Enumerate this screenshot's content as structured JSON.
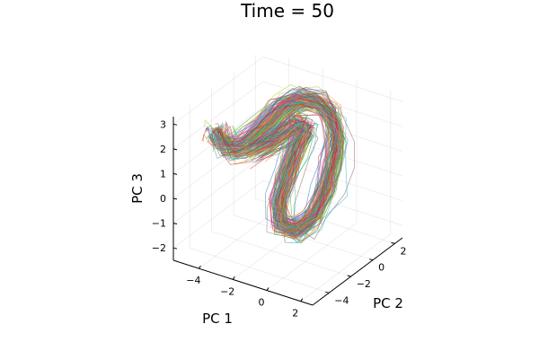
{
  "chart_data": {
    "type": "line",
    "projection": "3d",
    "title": "Time = 50",
    "xlabel": "PC 1",
    "ylabel": "PC 2",
    "zlabel": "PC 3",
    "xlim": [
      -5.5,
      2.7
    ],
    "ylim": [
      -5.5,
      2.7
    ],
    "zlim": [
      -2.5,
      3.3
    ],
    "x_ticks": [
      -4,
      -2,
      0,
      2
    ],
    "x_tick_labels": [
      "−4",
      "−2",
      "0",
      "2"
    ],
    "y_ticks": [
      -4,
      -2,
      0,
      2
    ],
    "y_tick_labels": [
      "−4",
      "−2",
      "0",
      "2"
    ],
    "z_ticks": [
      -2,
      -1,
      0,
      1,
      2,
      3
    ],
    "z_tick_labels": [
      "−2",
      "−1",
      "0",
      "1",
      "2",
      "3"
    ],
    "grid": true,
    "legend": false,
    "series_count": 120,
    "palette": [
      "#1f77b4",
      "#d62728",
      "#2ca02c",
      "#ff7f0e",
      "#9467bd",
      "#8c564b",
      "#e377c2",
      "#7f7f7f",
      "#bcbd22",
      "#17becf",
      "#e6194b",
      "#3cb44b"
    ]
  }
}
